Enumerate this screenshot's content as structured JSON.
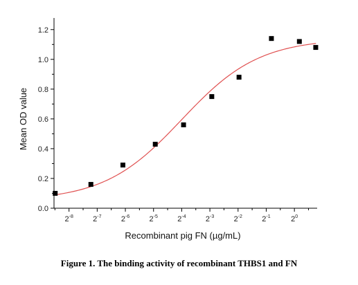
{
  "chart_data": {
    "type": "scatter",
    "caption": "Figure 1. The binding activity of recombinant THBS1 and FN",
    "xlabel": "Recombinant pig FN (µg/mL)",
    "ylabel": "Mean OD value",
    "x_scale": "log2",
    "xlim": [
      0.0027,
      1.75
    ],
    "ylim": [
      0,
      1.25
    ],
    "x_tick_labels": [
      {
        "value": 0.00390625,
        "base": "2",
        "exp": "-8"
      },
      {
        "value": 0.0078125,
        "base": "2",
        "exp": "-7"
      },
      {
        "value": 0.015625,
        "base": "2",
        "exp": "-6"
      },
      {
        "value": 0.03125,
        "base": "2",
        "exp": "-5"
      },
      {
        "value": 0.0625,
        "base": "2",
        "exp": "-4"
      },
      {
        "value": 0.125,
        "base": "2",
        "exp": "-3"
      },
      {
        "value": 0.25,
        "base": "2",
        "exp": "-2"
      },
      {
        "value": 0.5,
        "base": "2",
        "exp": "-1"
      },
      {
        "value": 1,
        "base": "2",
        "exp": "0"
      }
    ],
    "y_ticks": [
      0.0,
      0.2,
      0.4,
      0.6,
      0.8,
      1.0,
      1.2
    ],
    "y_tick_labels": [
      "0.0",
      "0.2",
      "0.4",
      "0.6",
      "0.8",
      "1.0",
      "1.2"
    ],
    "series": [
      {
        "marker": "square",
        "color": "#000000",
        "x": [
          0.00278,
          0.00669,
          0.0147,
          0.0326,
          0.0654,
          0.131,
          0.256,
          0.568,
          1.13,
          1.69
        ],
        "y": [
          0.1,
          0.16,
          0.29,
          0.43,
          0.56,
          0.75,
          0.88,
          1.14,
          1.12,
          1.08
        ]
      }
    ],
    "fit": {
      "type": "sigmoid",
      "color": "#e05050",
      "x_range": [
        0.0027,
        1.7
      ],
      "bottom": 0.05,
      "top": 1.14,
      "ec50": 0.0625,
      "hill": 1.05
    },
    "grid": false
  }
}
